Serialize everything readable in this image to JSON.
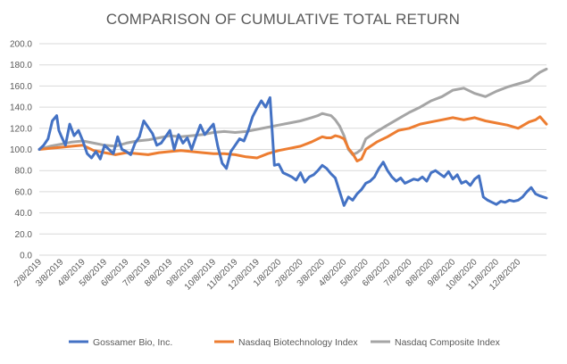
{
  "chart_data": {
    "type": "line",
    "title": "COMPARISON OF CUMULATIVE TOTAL RETURN",
    "xlabel": "",
    "ylabel": "",
    "ylim": [
      0,
      200
    ],
    "yticks": [
      0,
      20,
      40,
      60,
      80,
      100,
      120,
      140,
      160,
      180,
      200
    ],
    "ytick_labels": [
      "0.0",
      "20.0",
      "40.0",
      "60.0",
      "80.0",
      "100.0",
      "120.0",
      "140.0",
      "160.0",
      "180.0",
      "200.0"
    ],
    "x_range_months": [
      0,
      23.3
    ],
    "xtick_labels": [
      "2/8/2019",
      "3/8/2019",
      "4/8/2019",
      "5/8/2019",
      "6/8/2019",
      "7/8/2019",
      "8/8/2019",
      "9/8/2019",
      "10/8/2019",
      "11/8/2019",
      "12/8/2019",
      "1/8/2020",
      "2/8/2020",
      "3/8/2020",
      "4/8/2020",
      "5/8/2020",
      "6/8/2020",
      "7/8/2020",
      "8/8/2020",
      "9/8/2020",
      "10/8/2020",
      "11/8/2020",
      "12/8/2020"
    ],
    "grid": true,
    "legend_position": "bottom",
    "series": [
      {
        "name": "Gossamer Bio, Inc.",
        "color": "#4472C4",
        "x": [
          0,
          0.2,
          0.4,
          0.6,
          0.8,
          0.9,
          1.0,
          1.2,
          1.4,
          1.6,
          1.8,
          2.0,
          2.2,
          2.4,
          2.6,
          2.8,
          3.0,
          3.2,
          3.4,
          3.6,
          3.8,
          4.0,
          4.2,
          4.4,
          4.6,
          4.8,
          5.0,
          5.2,
          5.4,
          5.6,
          5.8,
          6.0,
          6.2,
          6.4,
          6.6,
          6.8,
          7.0,
          7.2,
          7.4,
          7.6,
          7.8,
          8.0,
          8.2,
          8.4,
          8.6,
          8.8,
          9.0,
          9.2,
          9.4,
          9.6,
          9.8,
          10.0,
          10.2,
          10.4,
          10.6,
          10.8,
          11.0,
          11.2,
          11.4,
          11.6,
          11.8,
          12.0,
          12.2,
          12.4,
          12.6,
          12.8,
          13.0,
          13.2,
          13.4,
          13.6,
          13.8,
          14.0,
          14.2,
          14.4,
          14.6,
          14.8,
          15.0,
          15.2,
          15.4,
          15.6,
          15.8,
          16.0,
          16.2,
          16.4,
          16.6,
          16.8,
          17.0,
          17.2,
          17.4,
          17.6,
          17.8,
          18.0,
          18.2,
          18.4,
          18.6,
          18.8,
          19.0,
          19.2,
          19.4,
          19.6,
          19.8,
          20.0,
          20.2,
          20.4,
          20.6,
          20.8,
          21.0,
          21.2,
          21.4,
          21.6,
          21.8,
          22.0,
          22.2,
          22.4,
          22.6,
          22.8,
          23.0,
          23.3
        ],
        "values": [
          100,
          104,
          110,
          127,
          132,
          118,
          113,
          104,
          124,
          113,
          118,
          108,
          96,
          92,
          98,
          91,
          104,
          100,
          96,
          112,
          100,
          98,
          95,
          106,
          112,
          127,
          121,
          115,
          104,
          106,
          112,
          118,
          100,
          114,
          106,
          111,
          100,
          112,
          123,
          114,
          119,
          124,
          103,
          87,
          82,
          98,
          104,
          110,
          108,
          118,
          131,
          139,
          146,
          140,
          149,
          85,
          86,
          78,
          76,
          74,
          71,
          78,
          69,
          74,
          76,
          80,
          85,
          82,
          77,
          73,
          60,
          47,
          55,
          52,
          58,
          62,
          68,
          70,
          74,
          82,
          88,
          80,
          74,
          70,
          73,
          68,
          70,
          72,
          71,
          74,
          70,
          78,
          80,
          77,
          74,
          79,
          72,
          76,
          68,
          70,
          66,
          72,
          75,
          55,
          52,
          50,
          48,
          51,
          50,
          52,
          51,
          52,
          55,
          60,
          64,
          58,
          56,
          54
        ]
      },
      {
        "name": "Nasdaq Biotechnology Index",
        "color": "#ED7D31",
        "x": [
          0,
          0.5,
          1.0,
          1.5,
          2.0,
          2.5,
          3.0,
          3.5,
          4.0,
          4.5,
          5.0,
          5.5,
          6.0,
          6.5,
          7.0,
          7.5,
          8.0,
          8.5,
          9.0,
          9.5,
          10.0,
          10.5,
          11.0,
          11.5,
          12.0,
          12.5,
          12.8,
          13.0,
          13.2,
          13.4,
          13.6,
          13.8,
          14.0,
          14.2,
          14.4,
          14.6,
          14.8,
          15.0,
          15.5,
          16.0,
          16.5,
          17.0,
          17.5,
          18.0,
          18.5,
          19.0,
          19.5,
          20.0,
          20.5,
          21.0,
          21.5,
          22.0,
          22.5,
          22.8,
          23.0,
          23.3
        ],
        "values": [
          100,
          101,
          102,
          103,
          104,
          99,
          97,
          95,
          97,
          96,
          95,
          97,
          98,
          99,
          98,
          97,
          96,
          96,
          95,
          93,
          92,
          96,
          99,
          101,
          103,
          107,
          110,
          112,
          111,
          111,
          113,
          112,
          110,
          101,
          96,
          89,
          91,
          100,
          107,
          112,
          118,
          120,
          124,
          126,
          128,
          130,
          128,
          130,
          127,
          125,
          123,
          120,
          126,
          128,
          131,
          124
        ]
      },
      {
        "name": "Nasdaq Composite Index",
        "color": "#A5A5A5",
        "x": [
          0,
          0.5,
          1.0,
          1.5,
          2.0,
          2.5,
          3.0,
          3.5,
          4.0,
          4.5,
          5.0,
          5.5,
          6.0,
          6.5,
          7.0,
          7.5,
          8.0,
          8.5,
          9.0,
          9.5,
          10.0,
          10.5,
          11.0,
          11.5,
          12.0,
          12.5,
          12.8,
          13.0,
          13.2,
          13.4,
          13.6,
          13.8,
          14.0,
          14.2,
          14.4,
          14.6,
          14.8,
          15.0,
          15.5,
          16.0,
          16.5,
          17.0,
          17.5,
          18.0,
          18.5,
          19.0,
          19.5,
          20.0,
          20.5,
          21.0,
          21.5,
          22.0,
          22.5,
          22.8,
          23.0,
          23.3
        ],
        "values": [
          100,
          103,
          105,
          107,
          108,
          106,
          104,
          103,
          106,
          108,
          109,
          111,
          113,
          112,
          113,
          114,
          116,
          117,
          116,
          117,
          119,
          121,
          123,
          125,
          127,
          130,
          132,
          134,
          133,
          132,
          128,
          122,
          113,
          100,
          95,
          97,
          100,
          110,
          117,
          123,
          129,
          135,
          140,
          146,
          150,
          156,
          158,
          153,
          150,
          155,
          159,
          162,
          165,
          170,
          173,
          176
        ]
      }
    ]
  }
}
